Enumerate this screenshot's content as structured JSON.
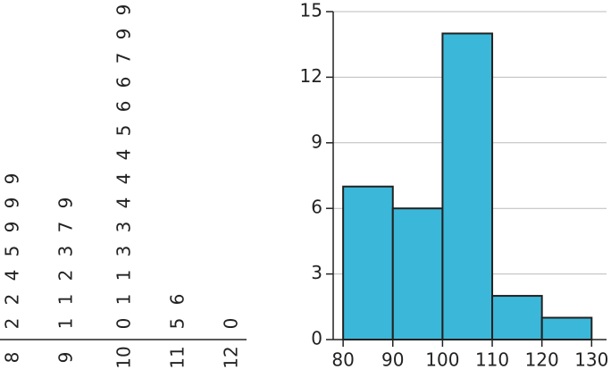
{
  "chart_data": [
    {
      "type": "stem-and-leaf",
      "stems": [
        8,
        9,
        10,
        11,
        12
      ],
      "leaves": [
        [
          2,
          2,
          4,
          5,
          9,
          9,
          9
        ],
        [
          1,
          1,
          2,
          3,
          7,
          9
        ],
        [
          0,
          1,
          1,
          3,
          3,
          4,
          4,
          4,
          5,
          6,
          6,
          7,
          9,
          9
        ],
        [
          5,
          6
        ],
        [
          0
        ]
      ]
    },
    {
      "type": "histogram",
      "bins": [
        80,
        90,
        100,
        110,
        120,
        130
      ],
      "values": [
        7,
        6,
        14,
        2,
        1
      ],
      "color": "#3bb8d9",
      "xlim": [
        78,
        133
      ],
      "xticks": [
        80,
        90,
        100,
        110,
        120,
        130
      ],
      "ylim": [
        0,
        15
      ],
      "yticks": [
        0,
        3,
        6,
        9,
        12,
        15
      ],
      "grid": true
    }
  ]
}
